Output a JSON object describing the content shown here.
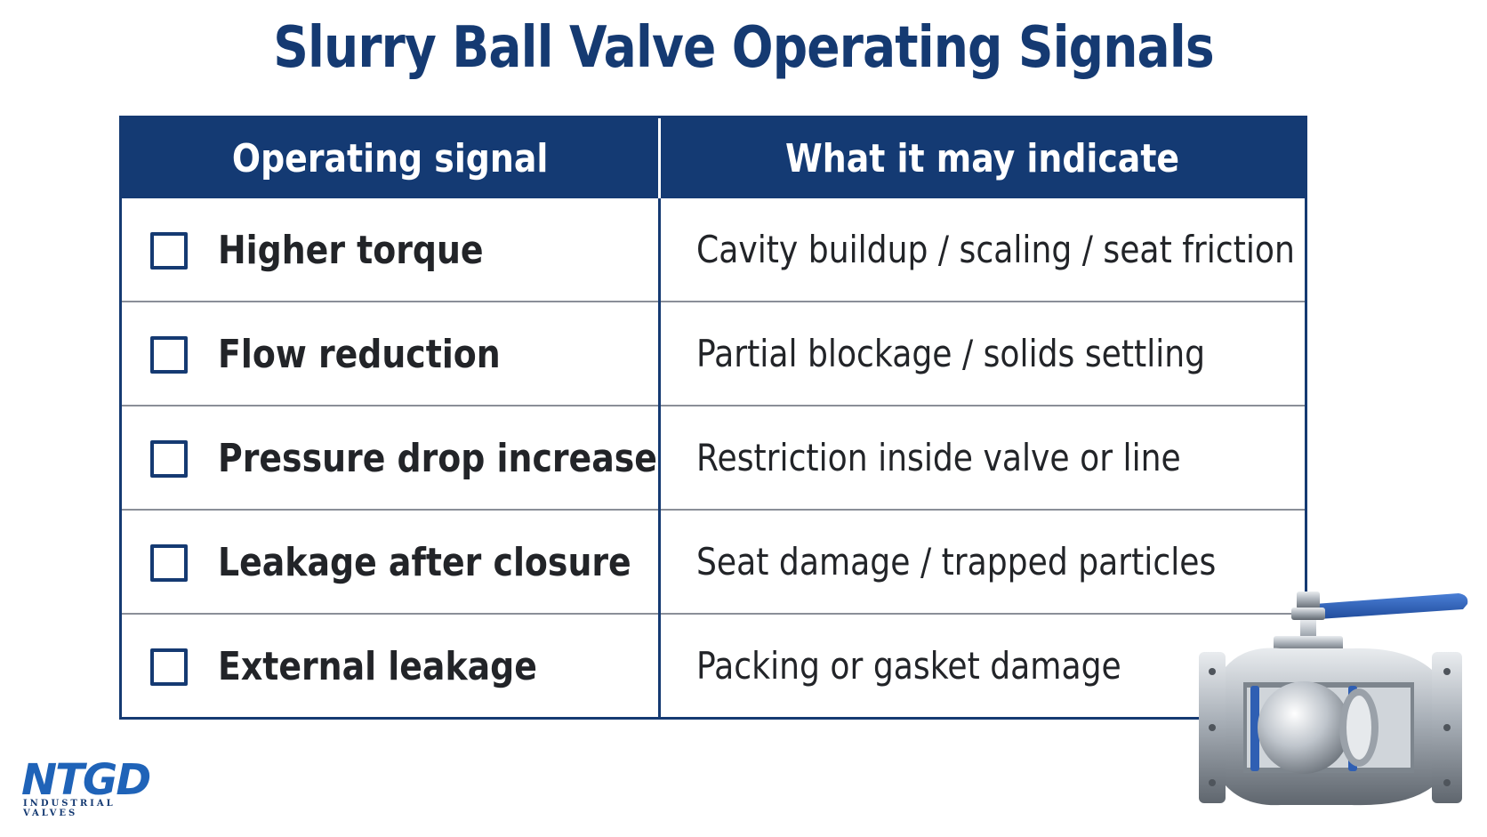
{
  "title": "Slurry Ball Valve Operating Signals",
  "table": {
    "headers": [
      "Operating signal",
      "What it may indicate"
    ],
    "rows": [
      {
        "signal": "Higher torque",
        "indication": "Cavity buildup / scaling / seat friction",
        "checked": false
      },
      {
        "signal": "Flow reduction",
        "indication": "Partial blockage / solids settling",
        "checked": false
      },
      {
        "signal": "Pressure drop increase",
        "indication": "Restriction inside valve or line",
        "checked": false
      },
      {
        "signal": "Leakage after closure",
        "indication": "Seat damage / trapped particles",
        "checked": false
      },
      {
        "signal": "External leakage",
        "indication": "Packing or gasket damage",
        "checked": false
      }
    ]
  },
  "logo": {
    "mark": "NTGD",
    "subtitle": "INDUSTRIAL VALVES"
  },
  "colors": {
    "navy": "#143a73",
    "logo_blue": "#1f63b8",
    "valve_blue": "#2f5fb3"
  },
  "icons": [
    "checkbox",
    "ball-valve-illustration",
    "ntgd-logo"
  ]
}
